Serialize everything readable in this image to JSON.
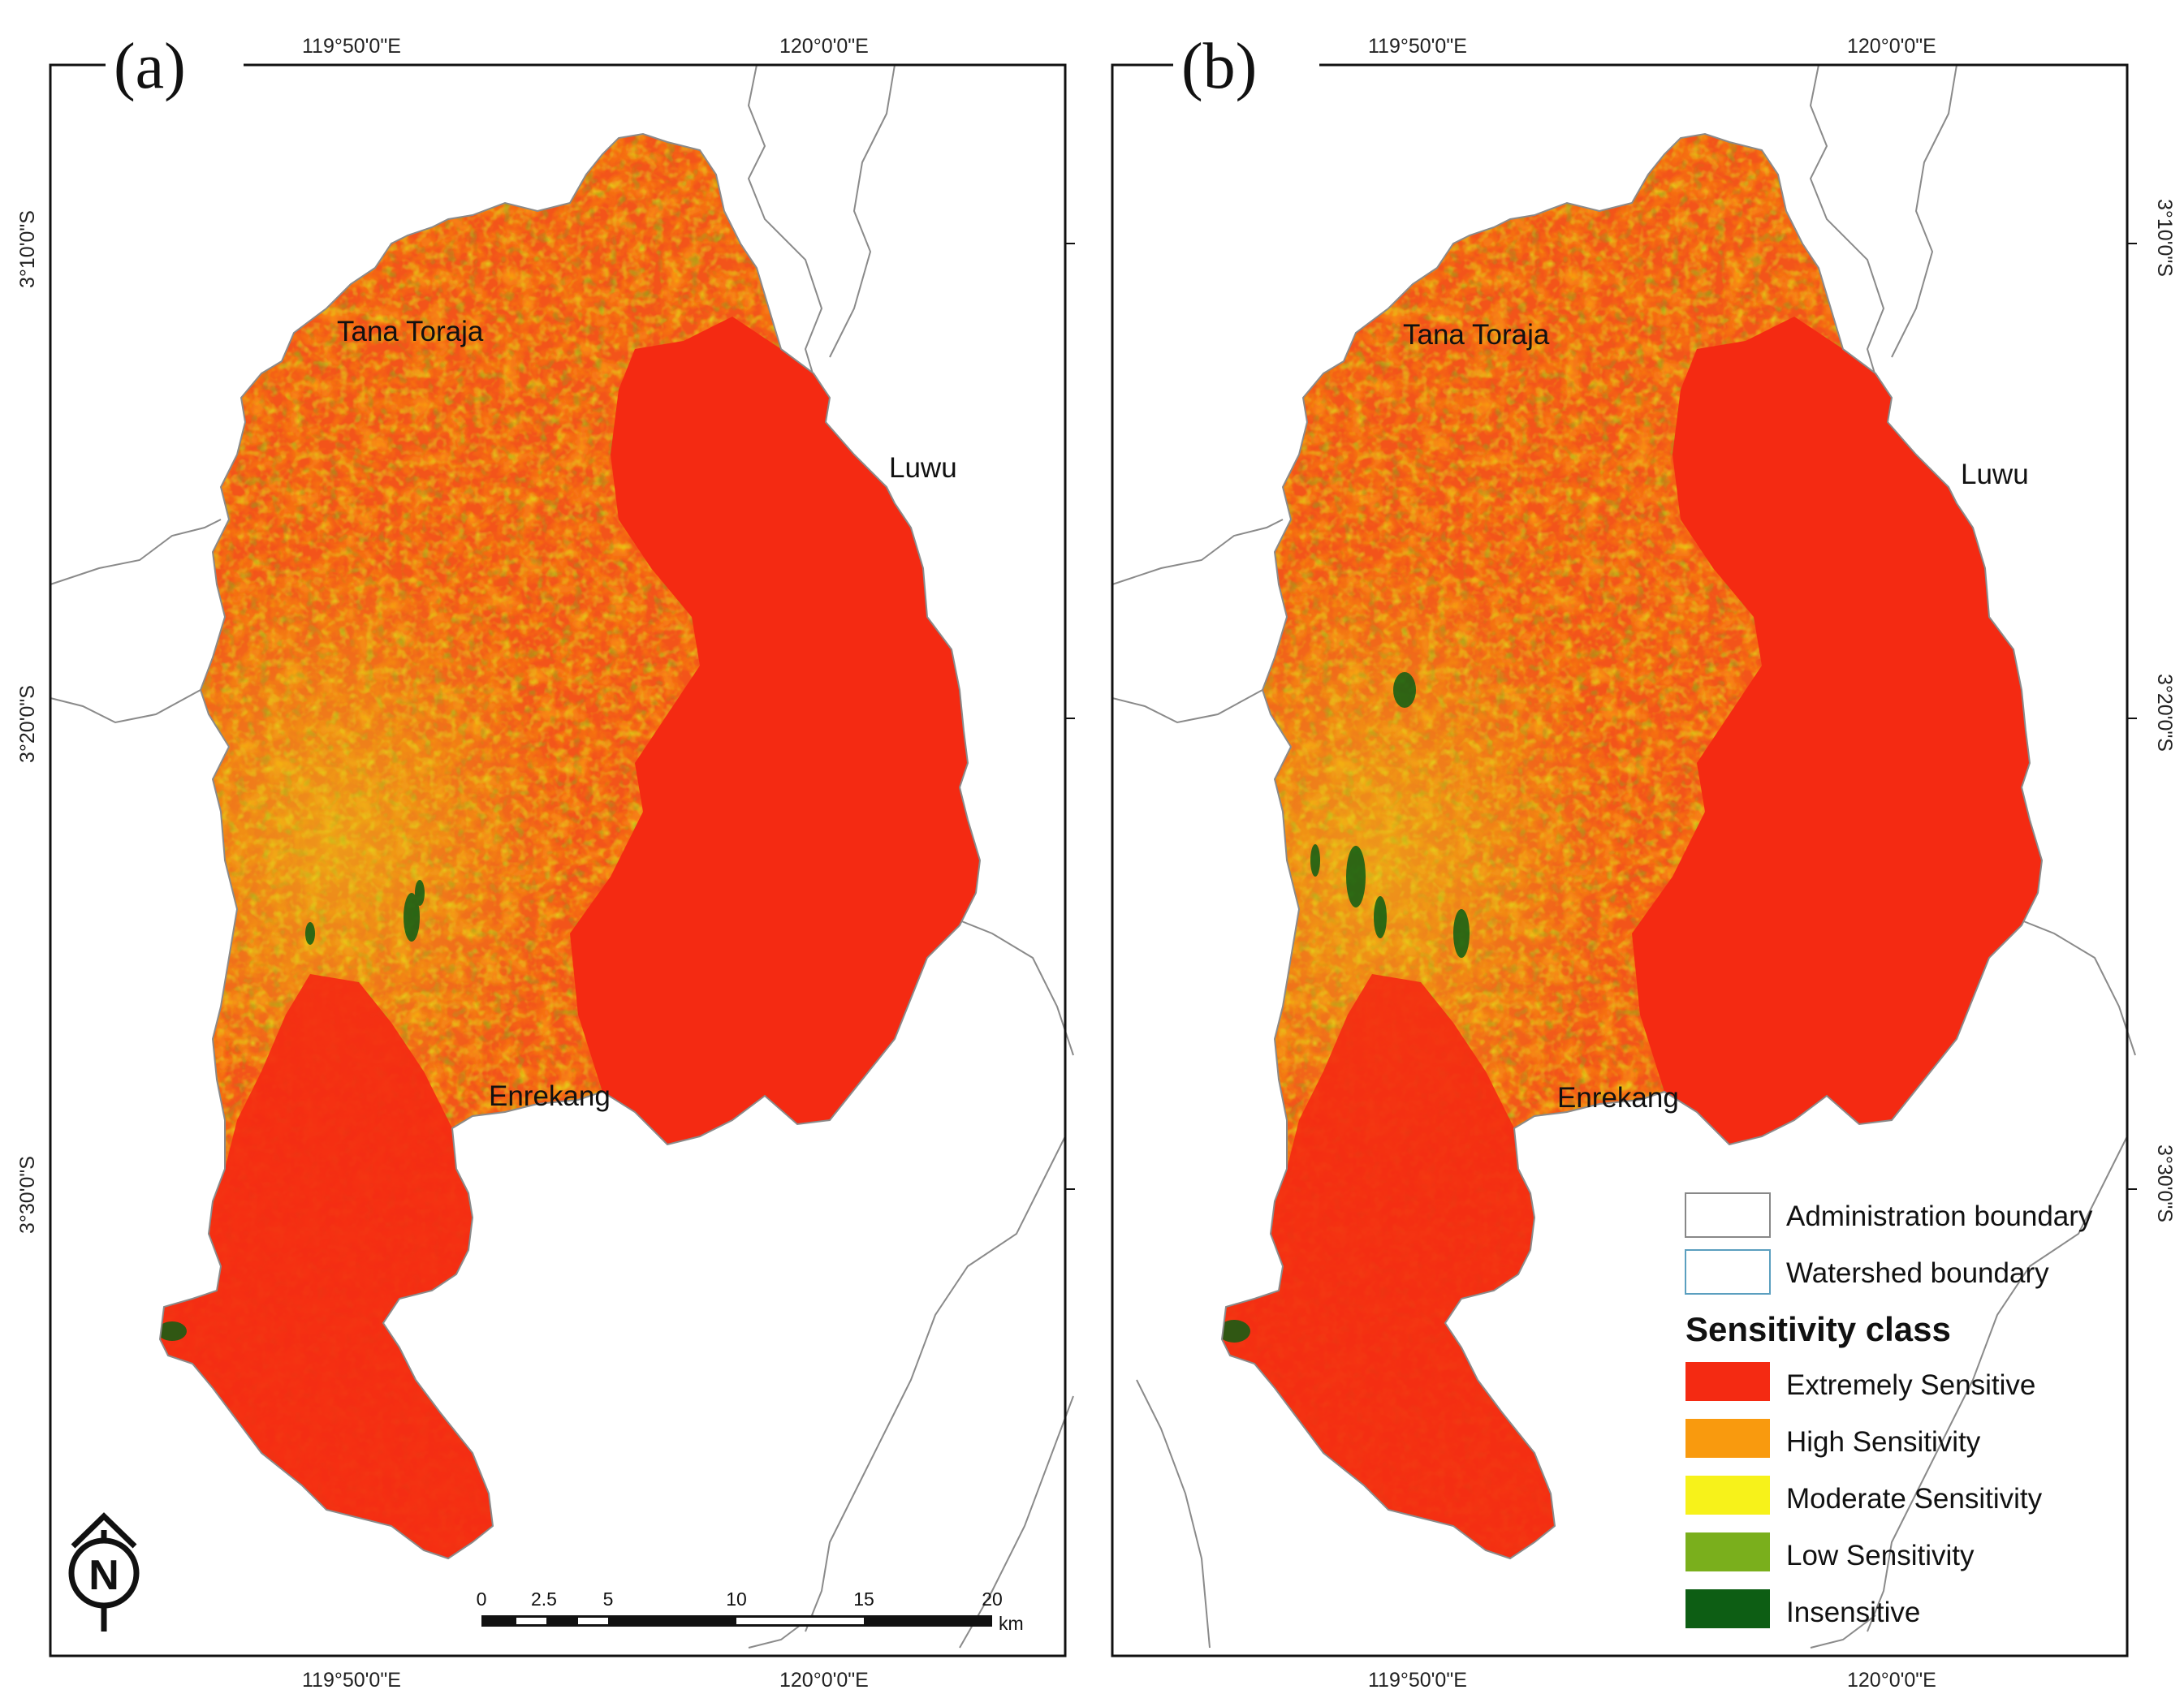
{
  "panels": [
    {
      "id": "a",
      "label": "(a)",
      "lon_ticks": [
        "119°50'0\"E",
        "120°0'0\"E"
      ],
      "lat_ticks": [
        "3°10'0\"S",
        "3°20'0\"S",
        "3°30'0\"S"
      ],
      "places": [
        "Tana Toraja",
        "Luwu",
        "Enrekang"
      ]
    },
    {
      "id": "b",
      "label": "(b)",
      "lon_ticks": [
        "119°50'0\"E",
        "120°0'0\"E"
      ],
      "lat_ticks": [
        "3°10'0\"S",
        "3°20'0\"S",
        "3°30'0\"S"
      ],
      "places": [
        "Tana Toraja",
        "Luwu",
        "Enrekang"
      ]
    }
  ],
  "scale_bar": {
    "ticks": [
      "0",
      "2.5",
      "5",
      "10",
      "15",
      "20"
    ],
    "unit": "km"
  },
  "north_arrow": {
    "letter": "N",
    "icon": "north-arrow-icon"
  },
  "legend": {
    "boundaries": [
      {
        "label": "Administration boundary",
        "color": "#888888"
      },
      {
        "label": "Watershed boundary",
        "color": "#5b9fbf"
      }
    ],
    "title": "Sensitivity class",
    "classes": [
      {
        "label": "Extremely Sensitive",
        "color": "#f42a12"
      },
      {
        "label": "High Sensitivity",
        "color": "#f99a0e"
      },
      {
        "label": "Moderate Sensitivity",
        "color": "#f7f21a"
      },
      {
        "label": "Low Sensitivity",
        "color": "#7aaf1c"
      },
      {
        "label": "Insensitive",
        "color": "#0d5e14"
      }
    ]
  }
}
